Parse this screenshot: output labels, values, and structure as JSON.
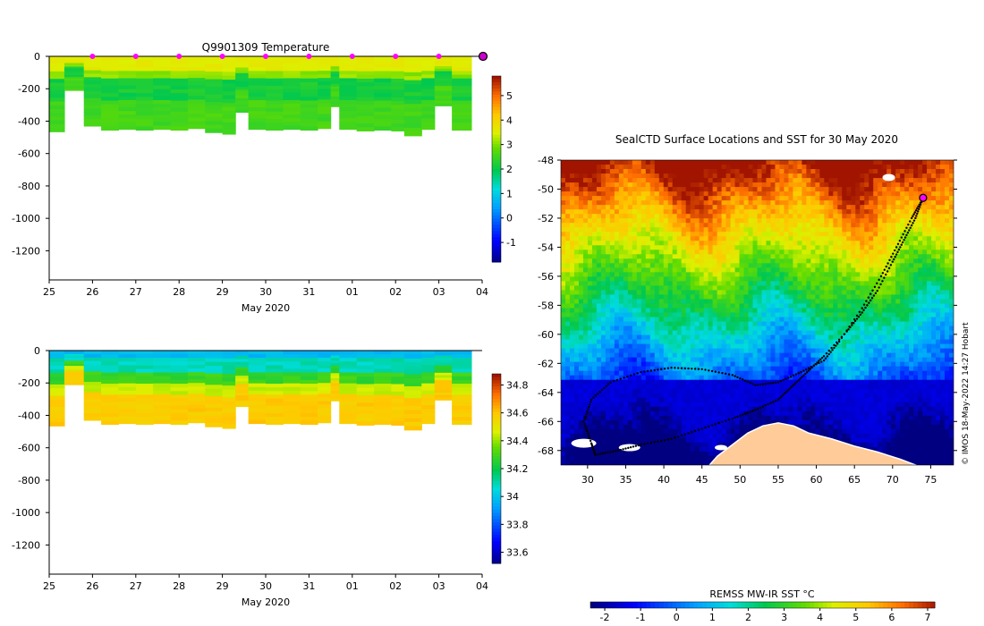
{
  "top_panel": {
    "title": "Q9901309  Temperature"
  },
  "mid_panel": {
    "title": ""
  },
  "map_panel": {
    "title": "SealCTD Surface Locations and SST for 30 May 2020"
  },
  "sst_colorbar": {
    "label": "REMSS MW-IR SST °C"
  },
  "copyright": "© IMOS 18-May-2022 14:27 Hobart",
  "chart_data": [
    {
      "id": "temperature_section",
      "type": "heatmap",
      "title": "Q9901309  Temperature",
      "xlabel": "May 2020",
      "ylabel": "",
      "x_tick_labels": [
        "25",
        "26",
        "27",
        "28",
        "29",
        "30",
        "31",
        "01",
        "02",
        "03",
        "04"
      ],
      "y_ticks": [
        0,
        -200,
        -400,
        -600,
        -800,
        -1000,
        -1200
      ],
      "ylim": [
        -1380,
        0
      ],
      "xlim": [
        25,
        35
      ],
      "colorbar": {
        "ticks": [
          5,
          4,
          3,
          2,
          1,
          0,
          -1
        ],
        "range": [
          -1.8,
          5.8
        ]
      },
      "profile_markers_x": [
        26,
        27,
        28,
        29,
        30,
        31,
        32,
        33,
        34
      ],
      "last_marker_x": 35,
      "profiles": [
        {
          "t0": 25.0,
          "t1": 25.35,
          "max_depth": 465
        },
        {
          "t0": 25.35,
          "t1": 25.8,
          "max_depth": 210
        },
        {
          "t0": 25.8,
          "t1": 26.2,
          "max_depth": 430
        },
        {
          "t0": 26.2,
          "t1": 26.6,
          "max_depth": 455
        },
        {
          "t0": 26.6,
          "t1": 27.0,
          "max_depth": 450
        },
        {
          "t0": 27.0,
          "t1": 27.4,
          "max_depth": 455
        },
        {
          "t0": 27.4,
          "t1": 27.8,
          "max_depth": 450
        },
        {
          "t0": 27.8,
          "t1": 28.2,
          "max_depth": 455
        },
        {
          "t0": 28.2,
          "t1": 28.6,
          "max_depth": 445
        },
        {
          "t0": 28.6,
          "t1": 29.0,
          "max_depth": 470
        },
        {
          "t0": 29.0,
          "t1": 29.3,
          "max_depth": 480
        },
        {
          "t0": 29.3,
          "t1": 29.6,
          "max_depth": 345
        },
        {
          "t0": 29.6,
          "t1": 30.0,
          "max_depth": 450
        },
        {
          "t0": 30.0,
          "t1": 30.4,
          "max_depth": 455
        },
        {
          "t0": 30.4,
          "t1": 30.8,
          "max_depth": 450
        },
        {
          "t0": 30.8,
          "t1": 31.2,
          "max_depth": 455
        },
        {
          "t0": 31.2,
          "t1": 31.5,
          "max_depth": 445
        },
        {
          "t0": 31.5,
          "t1": 31.7,
          "max_depth": 310
        },
        {
          "t0": 31.7,
          "t1": 32.1,
          "max_depth": 450
        },
        {
          "t0": 32.1,
          "t1": 32.5,
          "max_depth": 460
        },
        {
          "t0": 32.5,
          "t1": 32.9,
          "max_depth": 455
        },
        {
          "t0": 32.9,
          "t1": 33.2,
          "max_depth": 460
        },
        {
          "t0": 33.2,
          "t1": 33.6,
          "max_depth": 490
        },
        {
          "t0": 33.6,
          "t1": 33.9,
          "max_depth": 450
        },
        {
          "t0": 33.9,
          "t1": 34.3,
          "max_depth": 305
        },
        {
          "t0": 34.3,
          "t1": 34.75,
          "max_depth": 455
        }
      ]
    },
    {
      "id": "salinity_section",
      "type": "heatmap",
      "title": "",
      "xlabel": "May 2020",
      "ylabel": "",
      "x_tick_labels": [
        "25",
        "26",
        "27",
        "28",
        "29",
        "30",
        "31",
        "01",
        "02",
        "03",
        "04"
      ],
      "y_ticks": [
        0,
        -200,
        -400,
        -600,
        -800,
        -1000,
        -1200
      ],
      "ylim": [
        -1380,
        0
      ],
      "xlim": [
        25,
        35
      ],
      "colorbar": {
        "ticks": [
          34.8,
          34.6,
          34.4,
          34.2,
          34,
          33.8,
          33.6
        ],
        "range": [
          33.52,
          34.88
        ]
      }
    },
    {
      "id": "sst_map",
      "type": "heatmap",
      "title": "SealCTD Surface Locations and SST for 30 May 2020",
      "xlabel": "",
      "ylabel": "",
      "x_tick_labels": [
        "30",
        "35",
        "40",
        "45",
        "50",
        "55",
        "60",
        "65",
        "70",
        "75"
      ],
      "y_tick_labels": [
        "-48",
        "-50",
        "-52",
        "-54",
        "-56",
        "-58",
        "-60",
        "-62",
        "-64",
        "-66",
        "-68"
      ],
      "xlim": [
        26.5,
        78
      ],
      "ylim": [
        -69,
        -48
      ],
      "colorbar": {
        "ticks": [
          -2,
          -1,
          0,
          1,
          2,
          3,
          4,
          5,
          6,
          7
        ],
        "range": [
          -2.4,
          7.2
        ],
        "label": "REMSS MW-IR SST °C"
      },
      "current_position": {
        "lon": 74,
        "lat": -50.6
      },
      "track": [
        [
          74,
          -50.6
        ],
        [
          73,
          -52
        ],
        [
          71.5,
          -53.5
        ],
        [
          70,
          -55
        ],
        [
          68,
          -57
        ],
        [
          66,
          -58.5
        ],
        [
          64,
          -59.8
        ],
        [
          61,
          -61.5
        ],
        [
          59,
          -62.5
        ],
        [
          57,
          -63.5
        ],
        [
          55,
          -64.5
        ],
        [
          52,
          -65.2
        ],
        [
          49,
          -65.8
        ],
        [
          45,
          -66.5
        ],
        [
          41,
          -67.2
        ],
        [
          37,
          -67.6
        ],
        [
          34,
          -68
        ],
        [
          31,
          -68.3
        ],
        [
          30.5,
          -67.5
        ],
        [
          29.5,
          -66
        ],
        [
          30.5,
          -64.5
        ],
        [
          33,
          -63.3
        ],
        [
          37,
          -62.6
        ],
        [
          41,
          -62.3
        ],
        [
          45,
          -62.4
        ],
        [
          49,
          -62.8
        ],
        [
          52,
          -63.5
        ],
        [
          55,
          -63.3
        ],
        [
          58,
          -62.6
        ],
        [
          61,
          -61.8
        ],
        [
          63,
          -60.5
        ],
        [
          66,
          -58.2
        ],
        [
          68.5,
          -56
        ],
        [
          70.5,
          -54
        ],
        [
          72.5,
          -52
        ],
        [
          73.8,
          -50.8
        ]
      ]
    }
  ]
}
